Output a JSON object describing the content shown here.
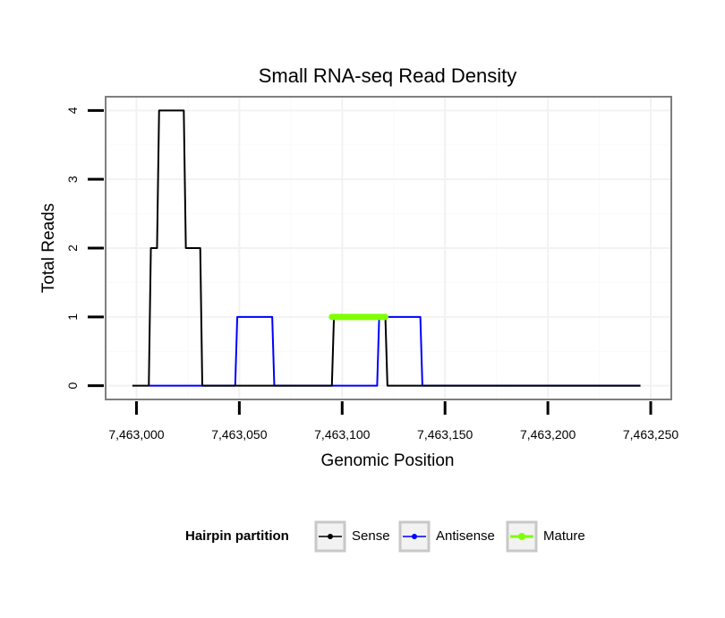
{
  "chart_data": {
    "type": "line",
    "title": "Small RNA-seq Read Density",
    "xlabel": "Genomic Position",
    "ylabel": "Total Reads",
    "xlim": [
      7462985,
      7463260
    ],
    "ylim": [
      -0.2,
      4.2
    ],
    "x_ticks": [
      7463000,
      7463050,
      7463100,
      7463150,
      7463200,
      7463250
    ],
    "x_tick_labels": [
      "7,463,000",
      "7,463,050",
      "7,463,100",
      "7,463,150",
      "7,463,200",
      "7,463,250"
    ],
    "y_ticks": [
      0,
      1,
      2,
      3,
      4
    ],
    "y_tick_labels": [
      "0",
      "1",
      "2",
      "3",
      "4"
    ],
    "grid": true,
    "legend": {
      "title": "Hairpin partition",
      "placement": "bottom"
    },
    "series": [
      {
        "name": "Sense",
        "color": "#000000",
        "x": [
          7462998,
          7463006,
          7463007,
          7463008,
          7463010,
          7463011,
          7463023,
          7463024,
          7463025,
          7463030,
          7463031,
          7463032,
          7463095,
          7463096,
          7463120,
          7463121,
          7463122,
          7463245
        ],
        "y": [
          0,
          0,
          2,
          2,
          2,
          4,
          4,
          2,
          2,
          2,
          2,
          0,
          0,
          1,
          1,
          1,
          0,
          0
        ]
      },
      {
        "name": "Antisense",
        "color": "#0000ff",
        "x": [
          7463006,
          7463048,
          7463049,
          7463066,
          7463067,
          7463101,
          7463117,
          7463118,
          7463124,
          7463138,
          7463139,
          7463245
        ],
        "y": [
          0,
          0,
          1,
          1,
          0,
          0,
          0,
          1,
          1,
          1,
          0,
          0
        ]
      },
      {
        "name": "Mature",
        "color": "#7fff00",
        "x": [
          7463095,
          7463121
        ],
        "y": [
          1,
          1
        ]
      }
    ]
  }
}
